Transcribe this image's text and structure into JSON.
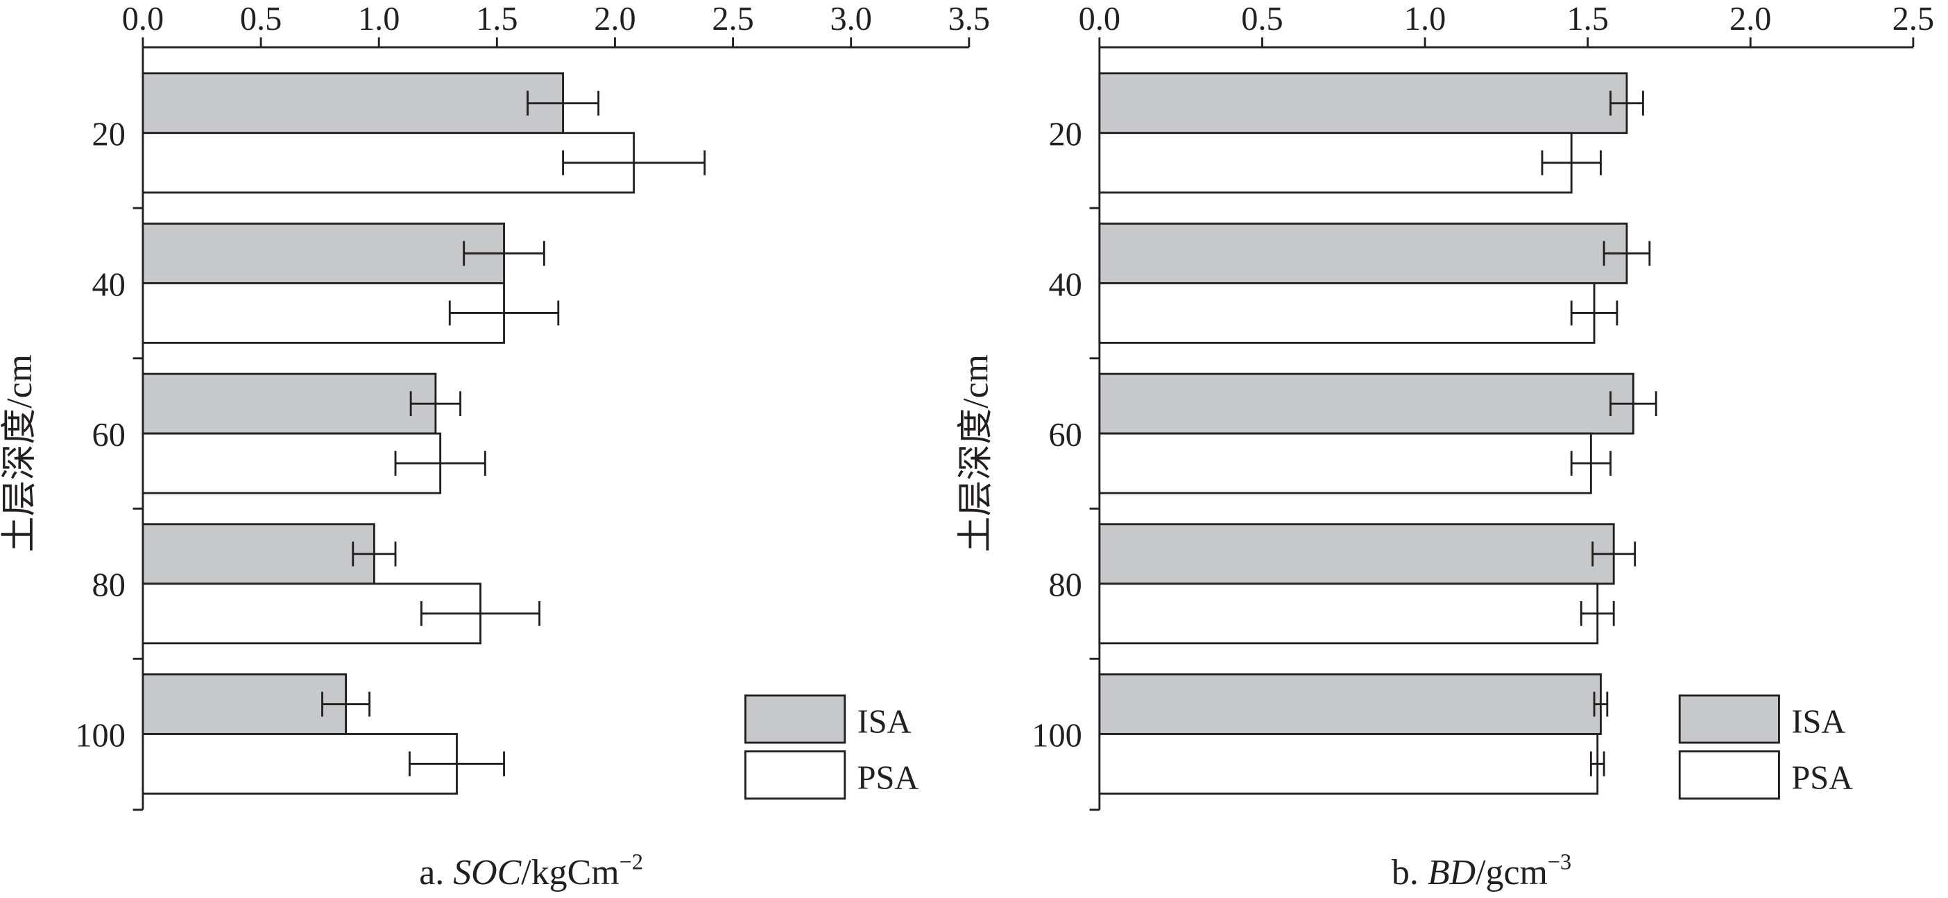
{
  "chart_data": [
    {
      "type": "bar",
      "orientation": "horizontal",
      "error_bars": true,
      "xlabel": {
        "prefix": "a.",
        "var": "SOC",
        "unit": "/kgCm",
        "exp": "−2"
      },
      "ylabel": "土层深度/cm",
      "categories": [
        "20",
        "40",
        "60",
        "80",
        "100"
      ],
      "xlim": [
        0,
        3.5
      ],
      "xticks": [
        {
          "value": 0,
          "label": "0.0"
        },
        0.5,
        {
          "value": 1,
          "label": "1.0"
        },
        1.5,
        {
          "value": 2,
          "label": "2.0"
        },
        2.5,
        {
          "value": 3,
          "label": "3.0"
        },
        3.5
      ],
      "legend": "lower right",
      "series": [
        {
          "name": "ISA",
          "color": "#c6c8ca",
          "values": [
            1.78,
            1.53,
            1.24,
            0.98,
            0.86
          ],
          "errors": [
            0.15,
            0.17,
            0.105,
            0.09,
            0.1
          ]
        },
        {
          "name": "PSA",
          "color": "#ffffff",
          "values": [
            2.08,
            1.53,
            1.26,
            1.43,
            1.33
          ],
          "errors": [
            0.3,
            0.23,
            0.19,
            0.25,
            0.2
          ]
        }
      ]
    },
    {
      "type": "bar",
      "orientation": "horizontal",
      "error_bars": true,
      "xlabel": {
        "prefix": "b.",
        "var": "BD",
        "unit": "/gcm",
        "exp": "−3"
      },
      "ylabel": "土层深度/cm",
      "categories": [
        "20",
        "40",
        "60",
        "80",
        "100"
      ],
      "xlim": [
        0,
        2.5
      ],
      "xticks": [
        {
          "value": 0,
          "label": "0.0"
        },
        0.5,
        {
          "value": 1,
          "label": "1.0"
        },
        1.5,
        {
          "value": 2,
          "label": "2.0"
        },
        2.5
      ],
      "legend": "lower right",
      "series": [
        {
          "name": "ISA",
          "color": "#c6c8ca",
          "values": [
            1.62,
            1.62,
            1.64,
            1.58,
            1.54
          ],
          "errors": [
            0.05,
            0.07,
            0.07,
            0.065,
            0.02
          ]
        },
        {
          "name": "PSA",
          "color": "#ffffff",
          "values": [
            1.45,
            1.52,
            1.51,
            1.53,
            1.53
          ],
          "errors": [
            0.09,
            0.07,
            0.06,
            0.05,
            0.02
          ]
        }
      ]
    }
  ]
}
